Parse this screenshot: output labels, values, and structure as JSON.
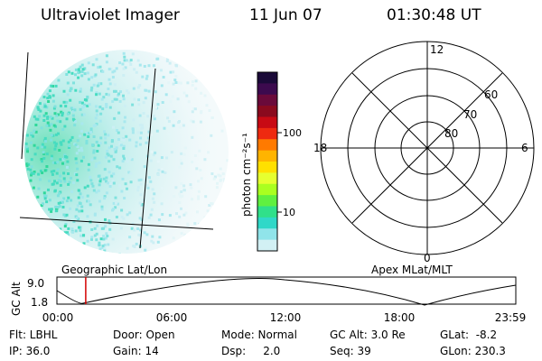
{
  "header": {
    "title": "Ultraviolet Imager",
    "date": "11 Jun 07",
    "time": "01:30:48 UT"
  },
  "colorbar": {
    "unit_label": "photon cm⁻²s⁻¹",
    "ticks": [
      {
        "label": "100",
        "value": 100
      },
      {
        "label": "10",
        "value": 10
      }
    ],
    "colors": [
      "#1a0a38",
      "#3c0a4e",
      "#6a0a3a",
      "#8a0a1e",
      "#c80a14",
      "#ee2a10",
      "#ff7a00",
      "#ffb400",
      "#ffe000",
      "#e6ff30",
      "#aaff20",
      "#60f040",
      "#30e08a",
      "#30d8c8",
      "#90e4ea",
      "#d2f0f4"
    ]
  },
  "polar": {
    "clock_labels": {
      "top": "12",
      "left": "18",
      "right": "6",
      "bottom": "0"
    },
    "lat_labels": [
      "60",
      "70",
      "80"
    ]
  },
  "timeline": {
    "left_title": "Geographic Lat/Lon",
    "right_title": "Apex MLat/MLT",
    "ylabel": "GC Alt",
    "y_ticks": [
      "9.0",
      "1.8"
    ],
    "x_ticks": [
      "00:00",
      "06:00",
      "12:00",
      "18:00",
      "23:59"
    ],
    "current_fraction": 0.0627,
    "marker_color": "#d40000"
  },
  "info": {
    "flt": "Flt: LBHL",
    "ip": "IP: 36.0",
    "door": "Door: Open",
    "gain": "Gain: 14",
    "mode": "Mode: Normal",
    "dsp": "Dsp:     2.0",
    "gcalt": "GC Alt: 3.0 Re",
    "seq": "Seq: 39",
    "glat": "GLat:  -8.2",
    "glon": "GLon: 230.3"
  }
}
